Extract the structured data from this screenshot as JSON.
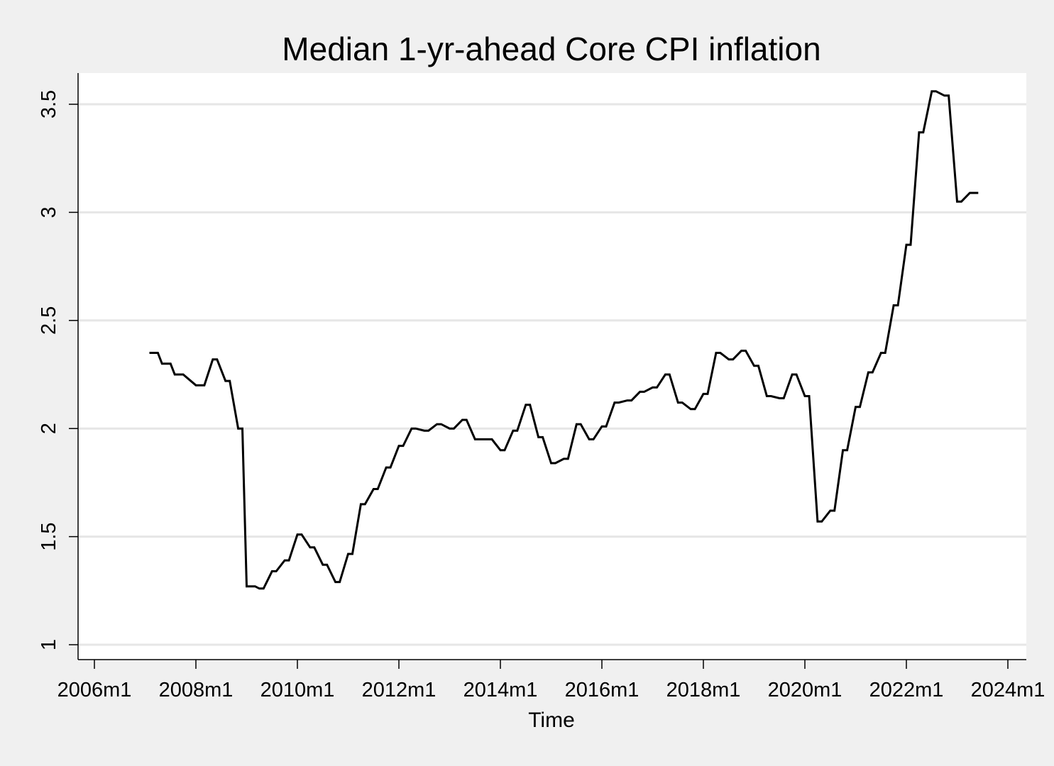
{
  "chart_data": {
    "type": "line",
    "title": "Median 1-yr-ahead Core CPI inflation",
    "xlabel": "Time",
    "ylabel": "",
    "xlim": [
      "2006m1",
      "2024m1"
    ],
    "ylim": [
      0.9,
      3.65
    ],
    "grid": true,
    "legend": "none",
    "colors": {
      "background": "#f0f0f0",
      "plot_area": "#ffffff",
      "grid": "#e6e6e6",
      "line": "#000000"
    },
    "yticks": [
      {
        "value": 1,
        "label": "1"
      },
      {
        "value": 1.5,
        "label": "1.5"
      },
      {
        "value": 2,
        "label": "2"
      },
      {
        "value": 2.5,
        "label": "2.5"
      },
      {
        "value": 3,
        "label": "3"
      },
      {
        "value": 3.5,
        "label": "3.5"
      }
    ],
    "xticks": [
      {
        "value": "2006m1",
        "label": "2006m1"
      },
      {
        "value": "2008m1",
        "label": "2008m1"
      },
      {
        "value": "2010m1",
        "label": "2010m1"
      },
      {
        "value": "2012m1",
        "label": "2012m1"
      },
      {
        "value": "2014m1",
        "label": "2014m1"
      },
      {
        "value": "2016m1",
        "label": "2016m1"
      },
      {
        "value": "2018m1",
        "label": "2018m1"
      },
      {
        "value": "2020m1",
        "label": "2020m1"
      },
      {
        "value": "2022m1",
        "label": "2022m1"
      },
      {
        "value": "2024m1",
        "label": "2024m1"
      }
    ],
    "series": [
      {
        "x": [
          "2007m2",
          "2007m4",
          "2007m5",
          "2007m7",
          "2007m8",
          "2007m10",
          "2008m1",
          "2008m3",
          "2008m5",
          "2008m6",
          "2008m8",
          "2008m9",
          "2008m11",
          "2008m12",
          "2009m1",
          "2009m3",
          "2009m4",
          "2009m5",
          "2009m7",
          "2009m8",
          "2009m10",
          "2009m11",
          "2010m1",
          "2010m2",
          "2010m4",
          "2010m5",
          "2010m7",
          "2010m8",
          "2010m10",
          "2010m11",
          "2011m1",
          "2011m2",
          "2011m4",
          "2011m5",
          "2011m7",
          "2011m8",
          "2011m10",
          "2011m11",
          "2012m1",
          "2012m2",
          "2012m4",
          "2012m5",
          "2012m7",
          "2012m8",
          "2012m10",
          "2012m11",
          "2013m1",
          "2013m2",
          "2013m4",
          "2013m5",
          "2013m7",
          "2013m8",
          "2013m10",
          "2013m11",
          "2014m1",
          "2014m2",
          "2014m4",
          "2014m5",
          "2014m7",
          "2014m8",
          "2014m10",
          "2014m11",
          "2015m1",
          "2015m2",
          "2015m4",
          "2015m5",
          "2015m7",
          "2015m8",
          "2015m10",
          "2015m11",
          "2016m1",
          "2016m2",
          "2016m4",
          "2016m5",
          "2016m7",
          "2016m8",
          "2016m10",
          "2016m11",
          "2017m1",
          "2017m2",
          "2017m4",
          "2017m5",
          "2017m7",
          "2017m8",
          "2017m10",
          "2017m11",
          "2018m1",
          "2018m2",
          "2018m4",
          "2018m5",
          "2018m7",
          "2018m8",
          "2018m10",
          "2018m11",
          "2019m1",
          "2019m2",
          "2019m4",
          "2019m5",
          "2019m7",
          "2019m8",
          "2019m10",
          "2019m11",
          "2020m1",
          "2020m2",
          "2020m4",
          "2020m5",
          "2020m7",
          "2020m8",
          "2020m10",
          "2020m11",
          "2021m1",
          "2021m2",
          "2021m4",
          "2021m5",
          "2021m7",
          "2021m8",
          "2021m10",
          "2021m11",
          "2022m1",
          "2022m2",
          "2022m4",
          "2022m5",
          "2022m7",
          "2022m8",
          "2022m10",
          "2022m11",
          "2023m1",
          "2023m2",
          "2023m4",
          "2023m5",
          "2023m6"
        ],
        "y": [
          2.35,
          2.35,
          2.3,
          2.3,
          2.25,
          2.25,
          2.2,
          2.2,
          2.32,
          2.32,
          2.22,
          2.22,
          2.0,
          2.0,
          1.27,
          1.27,
          1.26,
          1.26,
          1.34,
          1.34,
          1.39,
          1.39,
          1.51,
          1.51,
          1.45,
          1.45,
          1.37,
          1.37,
          1.29,
          1.29,
          1.42,
          1.42,
          1.65,
          1.65,
          1.72,
          1.72,
          1.82,
          1.82,
          1.92,
          1.92,
          2.0,
          2.0,
          1.99,
          1.99,
          2.02,
          2.02,
          2.0,
          2.0,
          2.04,
          2.04,
          1.95,
          1.95,
          1.95,
          1.95,
          1.9,
          1.9,
          1.99,
          1.99,
          2.11,
          2.11,
          1.96,
          1.96,
          1.84,
          1.84,
          1.86,
          1.86,
          2.02,
          2.02,
          1.95,
          1.95,
          2.01,
          2.01,
          2.12,
          2.12,
          2.13,
          2.13,
          2.17,
          2.17,
          2.19,
          2.19,
          2.25,
          2.25,
          2.12,
          2.12,
          2.09,
          2.09,
          2.16,
          2.16,
          2.35,
          2.35,
          2.32,
          2.32,
          2.36,
          2.36,
          2.29,
          2.29,
          2.15,
          2.15,
          2.14,
          2.14,
          2.25,
          2.25,
          2.15,
          2.15,
          1.57,
          1.57,
          1.62,
          1.62,
          1.9,
          1.9,
          2.1,
          2.1,
          2.26,
          2.26,
          2.35,
          2.35,
          2.57,
          2.57,
          2.85,
          2.85,
          3.37,
          3.37,
          3.56,
          3.56,
          3.54,
          3.54,
          3.05,
          3.05,
          3.09,
          3.09,
          3.09
        ]
      }
    ]
  }
}
